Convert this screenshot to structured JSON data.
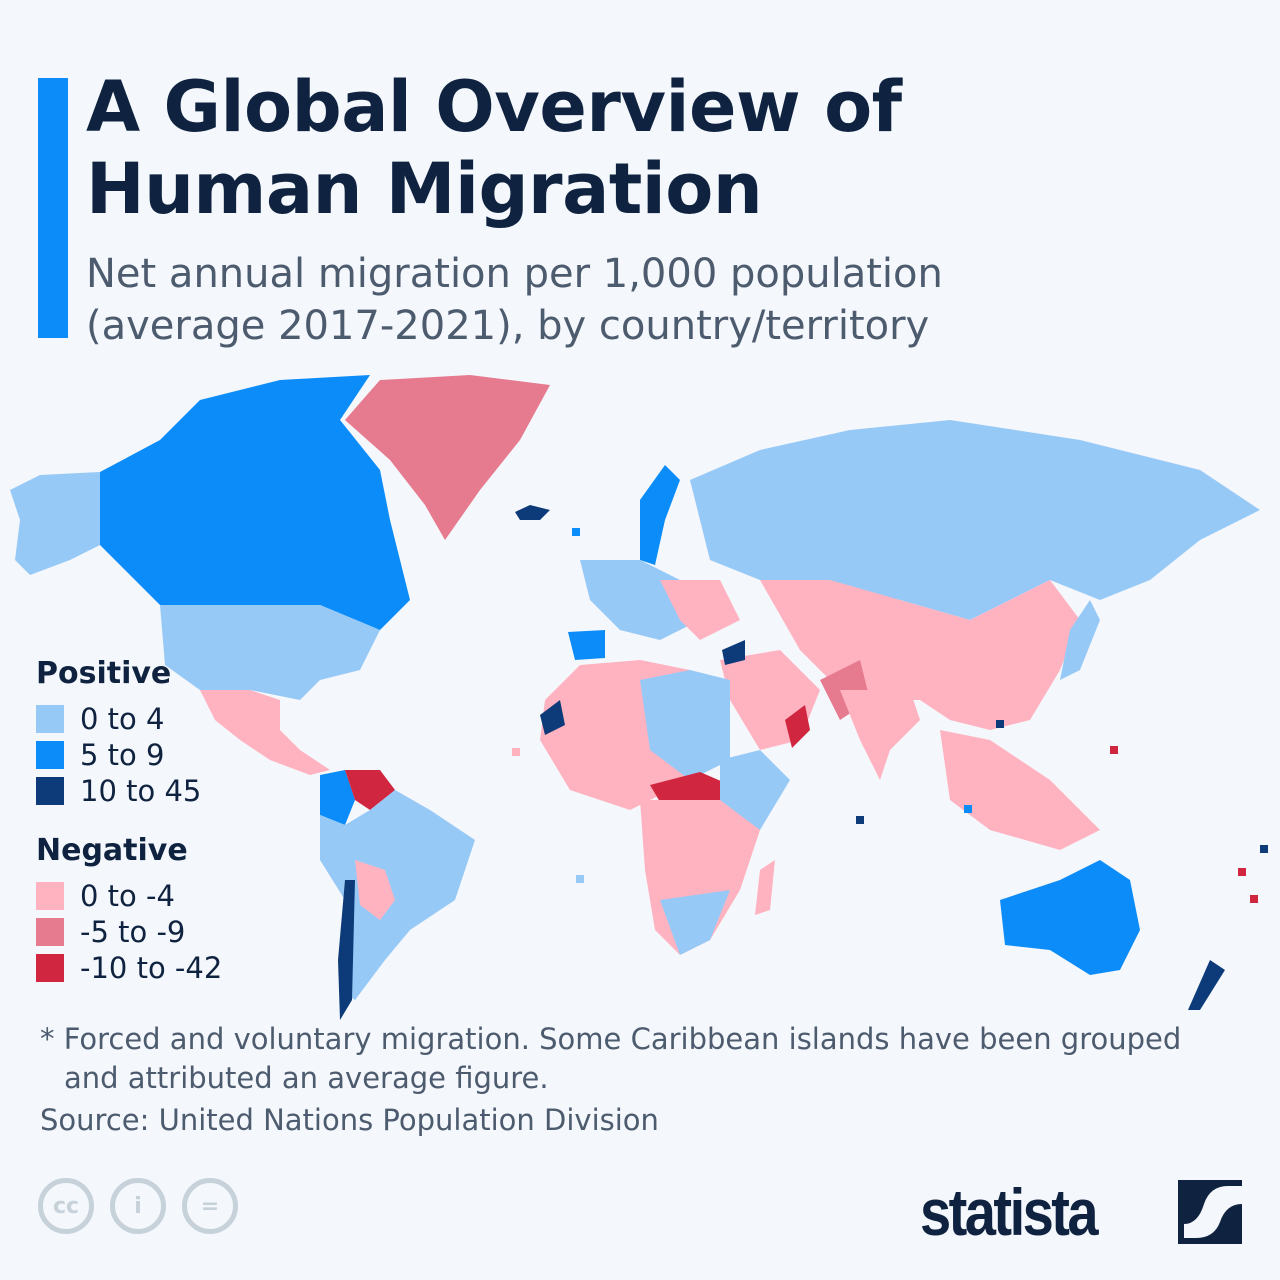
{
  "header": {
    "title_line1": "A Global Overview of",
    "title_line2": "Human Migration",
    "subtitle_line1": "Net annual migration per 1,000 population",
    "subtitle_line2": "(average 2017-2021), by country/territory"
  },
  "legend": {
    "positive_title": "Positive",
    "positive": [
      {
        "label": "0 to 4",
        "color": "#97c9f7"
      },
      {
        "label": "5 to 9",
        "color": "#0b8cf9"
      },
      {
        "label": "10 to 45",
        "color": "#0d3b7a"
      }
    ],
    "negative_title": "Negative",
    "negative": [
      {
        "label": "0 to -4",
        "color": "#ffb3c1"
      },
      {
        "label": "-5 to -9",
        "color": "#e67a8e"
      },
      {
        "label": "-10 to -42",
        "color": "#d0263f"
      }
    ]
  },
  "footer": {
    "note_line1": "* Forced and voluntary migration. Some Caribbean islands have been grouped",
    "note_line2": "and attributed an average figure.",
    "source": "Source: United Nations Population Division",
    "license_icons": [
      "cc-icon",
      "attribution-icon",
      "no-derivatives-icon"
    ],
    "brand": "statista"
  }
}
